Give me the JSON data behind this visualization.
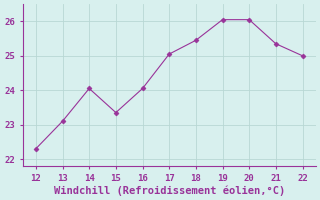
{
  "x": [
    12,
    13,
    14,
    15,
    16,
    17,
    18,
    19,
    20,
    21,
    22
  ],
  "y": [
    22.3,
    23.1,
    24.05,
    23.35,
    24.05,
    25.05,
    25.45,
    26.05,
    26.05,
    25.35,
    25.0
  ],
  "line_color": "#993399",
  "marker": "D",
  "marker_size": 2.5,
  "background_color": "#d8f0ee",
  "grid_color": "#b8d8d4",
  "xlabel": "Windchill (Refroidissement éolien,°C)",
  "xlabel_color": "#993399",
  "tick_color": "#993399",
  "spine_color": "#993399",
  "xlim": [
    11.5,
    22.5
  ],
  "ylim": [
    21.8,
    26.5
  ],
  "xticks": [
    12,
    13,
    14,
    15,
    16,
    17,
    18,
    19,
    20,
    21,
    22
  ],
  "yticks": [
    22,
    23,
    24,
    25,
    26
  ],
  "tick_fontsize": 6.5,
  "xlabel_fontsize": 7.5
}
